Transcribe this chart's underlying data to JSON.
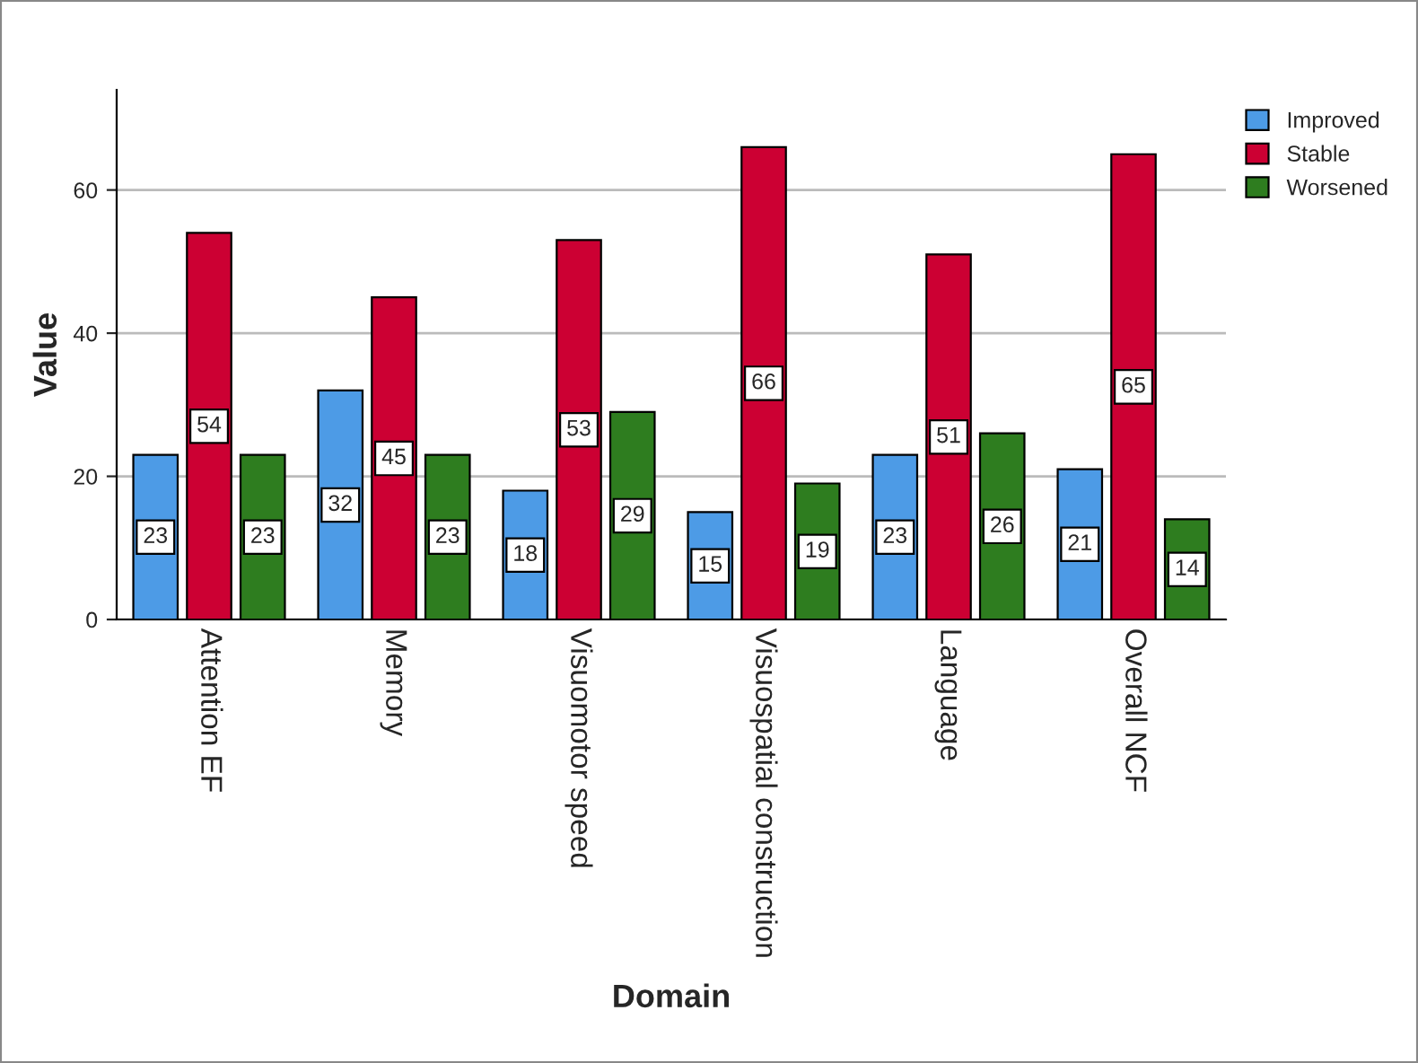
{
  "chart_data": {
    "type": "bar",
    "xlabel": "Domain",
    "ylabel": "Value",
    "categories": [
      "Attention EF",
      "Memory",
      "Visuomotor speed",
      "Visuospatial construction",
      "Language",
      "Overall NCF"
    ],
    "series": [
      {
        "name": "Improved",
        "color": "#4d9be6",
        "values": [
          23,
          32,
          18,
          15,
          23,
          21
        ]
      },
      {
        "name": "Stable",
        "color": "#cc0033",
        "values": [
          54,
          45,
          53,
          66,
          51,
          65
        ]
      },
      {
        "name": "Worsened",
        "color": "#2e7d1f",
        "values": [
          23,
          23,
          29,
          19,
          26,
          14
        ]
      }
    ],
    "ylim": [
      0,
      74
    ],
    "yticks": [
      0,
      20,
      40,
      60
    ],
    "grid": "y",
    "legend": "top right",
    "data_labels": true
  }
}
